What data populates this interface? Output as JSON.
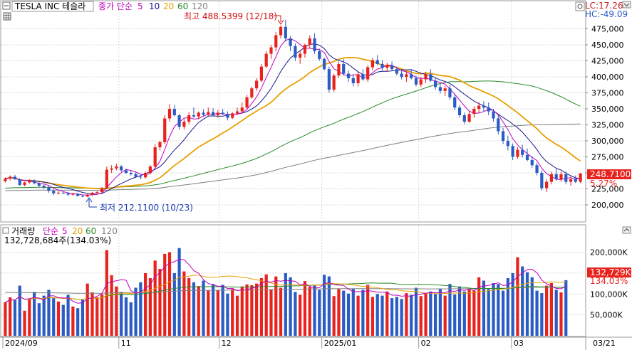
{
  "header": {
    "symbol": "TESLA INC 테슬라",
    "indicator_label": "종가 단순",
    "ma_periods": [
      "5",
      "10",
      "20",
      "60",
      "120"
    ],
    "lc": "LC:17.26",
    "hc": "HC:-49.09",
    "max_annotation": "최고 488.5399 (12/18)",
    "min_annotation": "최저 212.1100 (10/23)",
    "last_price_tag": "248.7100",
    "last_change_tag": "5.27%"
  },
  "volume_header": {
    "title": "거래량",
    "indicator_label": "단순",
    "ma_periods": [
      "5",
      "20",
      "60",
      "120"
    ],
    "current_value": "132,728,684주(134.03%)",
    "last_tag": "132,729K",
    "ratio_tag": "134.03%"
  },
  "colors": {
    "up": "#e8231e",
    "down": "#2a5cc4",
    "ma5": "#c000c0",
    "ma10": "#1a1a8c",
    "ma20": "#e8a000",
    "ma60": "#2a8a2a",
    "ma120": "#808080",
    "grid": "#d8d8d8"
  },
  "chart_data": {
    "type": "candlestick",
    "dates_labels": [
      "2024/09",
      "11",
      "12",
      "2025/01",
      "02",
      "03",
      "03/21"
    ],
    "price_axis": {
      "ticks": [
        200000,
        225000,
        250000,
        275000,
        300000,
        325000,
        350000,
        375000,
        400000,
        425000,
        450000,
        475000
      ],
      "tick_labels": [
        "200,000",
        "225,000",
        "250,000",
        "275,000",
        "300,000",
        "325,000",
        "350,000",
        "375,000",
        "400,000",
        "425,000",
        "450,000",
        "475,000"
      ],
      "range": [
        180000,
        500000
      ]
    },
    "volume_axis": {
      "ticks": [
        50000,
        100000,
        150000,
        200000
      ],
      "tick_labels": [
        "50,000K",
        "100,000K",
        "150,000K",
        "200,000K"
      ],
      "range": [
        0,
        235000
      ]
    },
    "candles": [
      [
        237,
        243,
        235,
        241
      ],
      [
        241,
        246,
        238,
        244
      ],
      [
        244,
        247,
        239,
        240
      ],
      [
        240,
        242,
        230,
        231
      ],
      [
        231,
        236,
        229,
        235
      ],
      [
        235,
        240,
        233,
        238
      ],
      [
        238,
        240,
        232,
        234
      ],
      [
        234,
        236,
        228,
        230
      ],
      [
        230,
        232,
        225,
        227
      ],
      [
        227,
        230,
        219,
        222
      ],
      [
        222,
        224,
        215,
        218
      ],
      [
        218,
        222,
        216,
        219
      ],
      [
        219,
        221,
        217,
        218
      ],
      [
        218,
        220,
        214,
        216
      ],
      [
        216,
        219,
        214,
        217
      ],
      [
        217,
        219,
        213,
        214
      ],
      [
        214,
        216,
        212,
        213
      ],
      [
        213,
        217,
        212,
        216
      ],
      [
        216,
        220,
        214,
        219
      ],
      [
        219,
        222,
        217,
        220
      ],
      [
        220,
        228,
        218,
        226
      ],
      [
        226,
        260,
        225,
        255
      ],
      [
        255,
        262,
        250,
        257
      ],
      [
        257,
        264,
        254,
        260
      ],
      [
        260,
        262,
        252,
        254
      ],
      [
        254,
        257,
        248,
        250
      ],
      [
        250,
        254,
        246,
        248
      ],
      [
        248,
        251,
        242,
        244
      ],
      [
        244,
        247,
        240,
        243
      ],
      [
        243,
        252,
        241,
        250
      ],
      [
        250,
        262,
        248,
        260
      ],
      [
        260,
        295,
        258,
        290
      ],
      [
        290,
        300,
        285,
        298
      ],
      [
        298,
        340,
        295,
        335
      ],
      [
        335,
        358,
        330,
        350
      ],
      [
        350,
        356,
        338,
        340
      ],
      [
        340,
        342,
        318,
        322
      ],
      [
        322,
        334,
        318,
        330
      ],
      [
        330,
        345,
        326,
        340
      ],
      [
        340,
        352,
        336,
        338
      ],
      [
        338,
        346,
        334,
        344
      ],
      [
        344,
        349,
        338,
        341
      ],
      [
        341,
        352,
        339,
        345
      ],
      [
        345,
        351,
        338,
        340
      ],
      [
        340,
        348,
        336,
        344
      ],
      [
        344,
        350,
        340,
        342
      ],
      [
        342,
        346,
        332,
        336
      ],
      [
        336,
        345,
        334,
        343
      ],
      [
        343,
        352,
        340,
        346
      ],
      [
        346,
        360,
        343,
        352
      ],
      [
        352,
        372,
        350,
        368
      ],
      [
        368,
        385,
        366,
        382
      ],
      [
        382,
        398,
        378,
        394
      ],
      [
        394,
        420,
        392,
        416
      ],
      [
        416,
        440,
        414,
        436
      ],
      [
        436,
        450,
        428,
        446
      ],
      [
        446,
        470,
        440,
        465
      ],
      [
        465,
        480,
        460,
        478
      ],
      [
        478,
        489,
        455,
        460
      ],
      [
        460,
        464,
        440,
        448
      ],
      [
        448,
        452,
        425,
        430
      ],
      [
        430,
        440,
        420,
        436
      ],
      [
        436,
        452,
        430,
        450
      ],
      [
        450,
        465,
        444,
        460
      ],
      [
        460,
        468,
        436,
        440
      ],
      [
        440,
        444,
        425,
        428
      ],
      [
        428,
        430,
        410,
        412
      ],
      [
        412,
        416,
        375,
        380
      ],
      [
        380,
        405,
        376,
        402
      ],
      [
        402,
        424,
        398,
        420
      ],
      [
        420,
        428,
        402,
        405
      ],
      [
        405,
        410,
        392,
        398
      ],
      [
        398,
        404,
        385,
        390
      ],
      [
        390,
        408,
        385,
        404
      ],
      [
        404,
        412,
        394,
        396
      ],
      [
        396,
        418,
        392,
        415
      ],
      [
        415,
        430,
        410,
        426
      ],
      [
        426,
        434,
        418,
        420
      ],
      [
        420,
        426,
        410,
        414
      ],
      [
        414,
        422,
        408,
        418
      ],
      [
        418,
        424,
        410,
        412
      ],
      [
        412,
        416,
        402,
        405
      ],
      [
        405,
        410,
        396,
        400
      ],
      [
        400,
        408,
        392,
        404
      ],
      [
        404,
        412,
        396,
        398
      ],
      [
        398,
        402,
        385,
        388
      ],
      [
        388,
        400,
        384,
        396
      ],
      [
        396,
        408,
        390,
        404
      ],
      [
        404,
        412,
        392,
        394
      ],
      [
        394,
        398,
        380,
        384
      ],
      [
        384,
        390,
        374,
        378
      ],
      [
        378,
        386,
        370,
        382
      ],
      [
        382,
        388,
        364,
        368
      ],
      [
        368,
        372,
        348,
        352
      ],
      [
        352,
        356,
        336,
        340
      ],
      [
        340,
        344,
        326,
        330
      ],
      [
        330,
        346,
        328,
        342
      ],
      [
        342,
        354,
        336,
        350
      ],
      [
        350,
        360,
        344,
        355
      ],
      [
        355,
        362,
        346,
        352
      ],
      [
        352,
        360,
        340,
        346
      ],
      [
        346,
        350,
        330,
        335
      ],
      [
        335,
        340,
        310,
        315
      ],
      [
        315,
        320,
        295,
        300
      ],
      [
        300,
        308,
        285,
        292
      ],
      [
        292,
        296,
        270,
        275
      ],
      [
        275,
        290,
        272,
        286
      ],
      [
        286,
        294,
        274,
        278
      ],
      [
        278,
        288,
        268,
        270
      ],
      [
        270,
        276,
        258,
        262
      ],
      [
        262,
        266,
        246,
        250
      ],
      [
        250,
        254,
        222,
        226
      ],
      [
        226,
        240,
        220,
        236
      ],
      [
        236,
        252,
        232,
        248
      ],
      [
        248,
        256,
        238,
        240
      ],
      [
        240,
        252,
        236,
        248
      ],
      [
        248,
        252,
        232,
        236
      ],
      [
        236,
        244,
        230,
        240
      ],
      [
        240,
        246,
        234,
        236
      ],
      [
        236,
        250,
        234,
        249
      ]
    ],
    "volumes": [
      80,
      92,
      85,
      120,
      60,
      88,
      105,
      78,
      96,
      110,
      90,
      82,
      74,
      98,
      70,
      66,
      86,
      125,
      104,
      92,
      99,
      205,
      145,
      118,
      105,
      92,
      80,
      115,
      128,
      150,
      138,
      180,
      160,
      196,
      200,
      150,
      210,
      154,
      138,
      128,
      119,
      132,
      108,
      124,
      109,
      122,
      101,
      112,
      96,
      118,
      123,
      121,
      125,
      138,
      147,
      110,
      142,
      115,
      150,
      140,
      105,
      98,
      131,
      117,
      120,
      110,
      146,
      142,
      95,
      112,
      108,
      101,
      112,
      96,
      110,
      122,
      93,
      100,
      96,
      106,
      90,
      93,
      88,
      102,
      98,
      115,
      95,
      101,
      106,
      100,
      112,
      96,
      124,
      99,
      118,
      106,
      110,
      108,
      140,
      132,
      112,
      126,
      124,
      108,
      138,
      150,
      188,
      166,
      152,
      140,
      108,
      102,
      120,
      126,
      110,
      104,
      133
    ],
    "series": []
  }
}
